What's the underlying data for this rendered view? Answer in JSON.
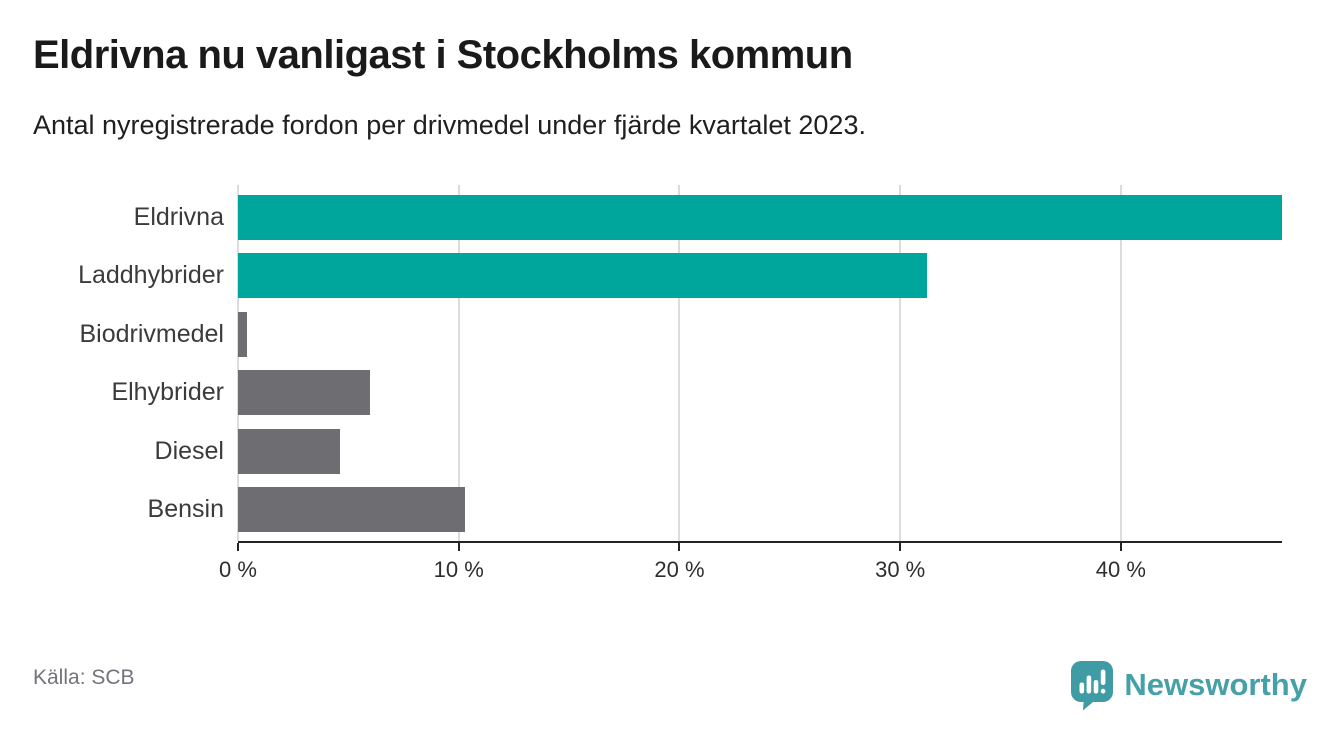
{
  "header": {
    "title": "Eldrivna nu vanligast i Stockholms kommun",
    "subtitle": "Antal nyregistrerade fordon per drivmedel under fjärde kvartalet 2023."
  },
  "chart_data": {
    "type": "bar",
    "orientation": "horizontal",
    "title": "Eldrivna nu vanligast i Stockholms kommun",
    "subtitle": "Antal nyregistrerade fordon per drivmedel under fjärde kvartalet 2023.",
    "categories": [
      "Eldrivna",
      "Laddhybrider",
      "Biodrivmedel",
      "Elhybrider",
      "Diesel",
      "Bensin"
    ],
    "values": [
      47.3,
      31.2,
      0.4,
      6.0,
      4.6,
      10.3
    ],
    "unit": "%",
    "xlabel": "",
    "ylabel": "",
    "xlim": [
      0,
      47.3
    ],
    "x_ticks": [
      {
        "value": 0,
        "label": "0 %"
      },
      {
        "value": 10,
        "label": "10 %"
      },
      {
        "value": 20,
        "label": "20 %"
      },
      {
        "value": 30,
        "label": "30 %"
      },
      {
        "value": 40,
        "label": "40 %"
      }
    ],
    "grid": true,
    "legend": "none",
    "bar_colors": [
      "#00a59c",
      "#00a59c",
      "#6d6d72",
      "#6d6d72",
      "#6d6d72",
      "#6d6d72"
    ],
    "highlight_color": "#00a59c",
    "default_color": "#6d6d72",
    "gridline_color": "#dcdcdc",
    "axis_color": "#242424"
  },
  "footer": {
    "source": "Källa: SCB",
    "brand": "Newsworthy",
    "brand_text_color": "#46a0a8",
    "brand_icon": "newsworthy-speech-bubble-bar-chart-icon",
    "brand_icon_color": "#3f9ca4"
  }
}
